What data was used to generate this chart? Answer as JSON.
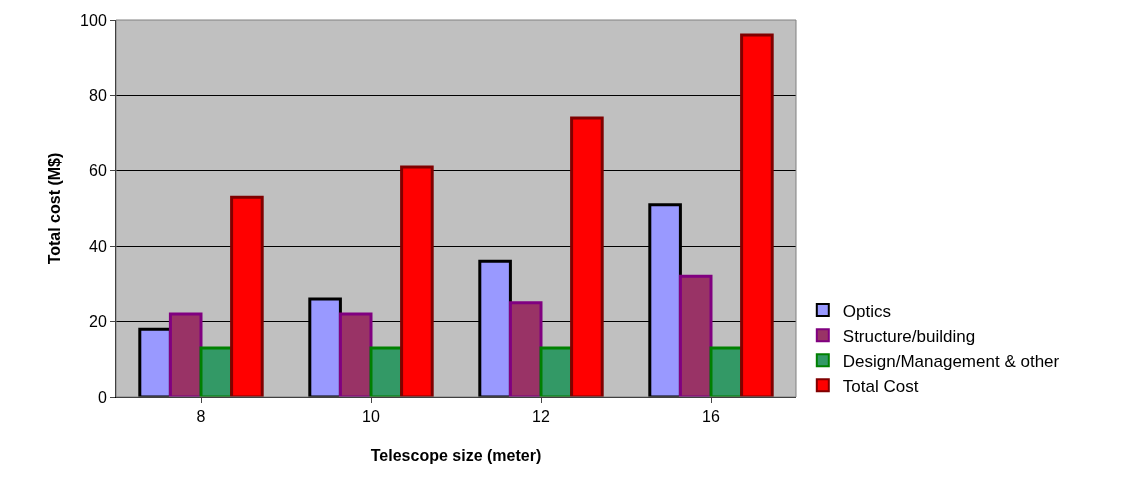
{
  "chart_data": {
    "type": "bar",
    "xlabel": "Telescope size (meter)",
    "ylabel": "Total cost (M$)",
    "categories": [
      "8",
      "10",
      "12",
      "16"
    ],
    "series": [
      {
        "name": "Optics",
        "color": "#9999ff",
        "values": [
          18,
          26,
          36,
          51
        ]
      },
      {
        "name": "Structure/building",
        "color": "#993366",
        "values": [
          22,
          22,
          25,
          32
        ]
      },
      {
        "name": "Design/Management & other",
        "color": "#339966",
        "values": [
          13,
          13,
          13,
          13
        ]
      },
      {
        "name": "Total Cost",
        "color": "#ff0000",
        "values": [
          53,
          61,
          74,
          96
        ]
      }
    ],
    "ylim": [
      0,
      100
    ],
    "yticks": [
      0,
      20,
      40,
      60,
      80,
      100
    ],
    "grid": "y",
    "legend": "right"
  }
}
